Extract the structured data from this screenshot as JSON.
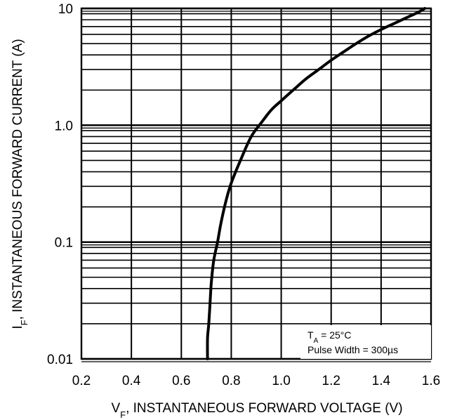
{
  "chart_data": {
    "type": "line",
    "title": "",
    "xlabel": {
      "main": "V",
      "sub": "F",
      "rest": ", INSTANTANEOUS FORWARD VOLTAGE (V)"
    },
    "ylabel": {
      "main": "I",
      "sub": "F",
      "rest": ", INSTANTANEOUS FORWARD CURRENT (A)"
    },
    "x_scale": "linear",
    "y_scale": "log",
    "xlim": [
      0.2,
      1.6
    ],
    "ylim": [
      0.01,
      10
    ],
    "x_ticks": [
      0.2,
      0.4,
      0.6,
      0.8,
      1.0,
      1.2,
      1.4,
      1.6
    ],
    "x_tick_labels": [
      "0.2",
      "0.4",
      "0.6",
      "0.8",
      "1.0",
      "1.2",
      "1.4",
      "1.6"
    ],
    "y_ticks": [
      0.01,
      0.1,
      1.0,
      10
    ],
    "y_tick_labels": [
      "0.01",
      "0.1",
      "1.0",
      "10"
    ],
    "grid": true,
    "series": [
      {
        "x": [
          0.705,
          0.705,
          0.71,
          0.715,
          0.72,
          0.73,
          0.745,
          0.76,
          0.78,
          0.8,
          0.84,
          0.88,
          0.92,
          0.96,
          1.0,
          1.05,
          1.1,
          1.15,
          1.2,
          1.25,
          1.3,
          1.35,
          1.4,
          1.45,
          1.5,
          1.55,
          1.575
        ],
        "y": [
          0.01,
          0.015,
          0.02,
          0.03,
          0.045,
          0.07,
          0.1,
          0.15,
          0.23,
          0.32,
          0.52,
          0.8,
          1.05,
          1.35,
          1.62,
          2.02,
          2.5,
          3.0,
          3.6,
          4.25,
          5.0,
          5.8,
          6.6,
          7.4,
          8.3,
          9.3,
          10.0
        ]
      }
    ],
    "annotation": {
      "line1": {
        "main": "T",
        "sub": "A",
        "rest": " = 25°C"
      },
      "line2": "Pulse Width = 300µs",
      "position": "bottom-right"
    }
  }
}
